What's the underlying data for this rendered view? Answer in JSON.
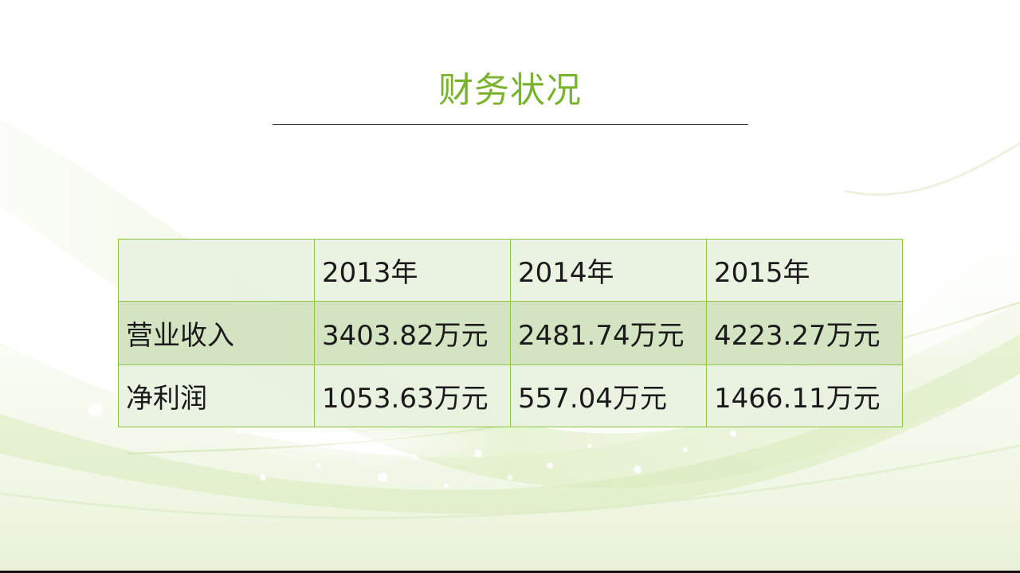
{
  "slide": {
    "title": "财务状况",
    "accent_color": "#7ab32e",
    "table_border_color": "#8cc63f"
  },
  "table": {
    "header": [
      "",
      "2013年",
      "2014年",
      "2015年"
    ],
    "rows": [
      {
        "label": "营业收入",
        "values": [
          "3403.82万元",
          "2481.74万元",
          "4223.27万元"
        ]
      },
      {
        "label": "净利润",
        "values": [
          "1053.63万元",
          "557.04万元",
          "1466.11万元"
        ]
      }
    ]
  }
}
